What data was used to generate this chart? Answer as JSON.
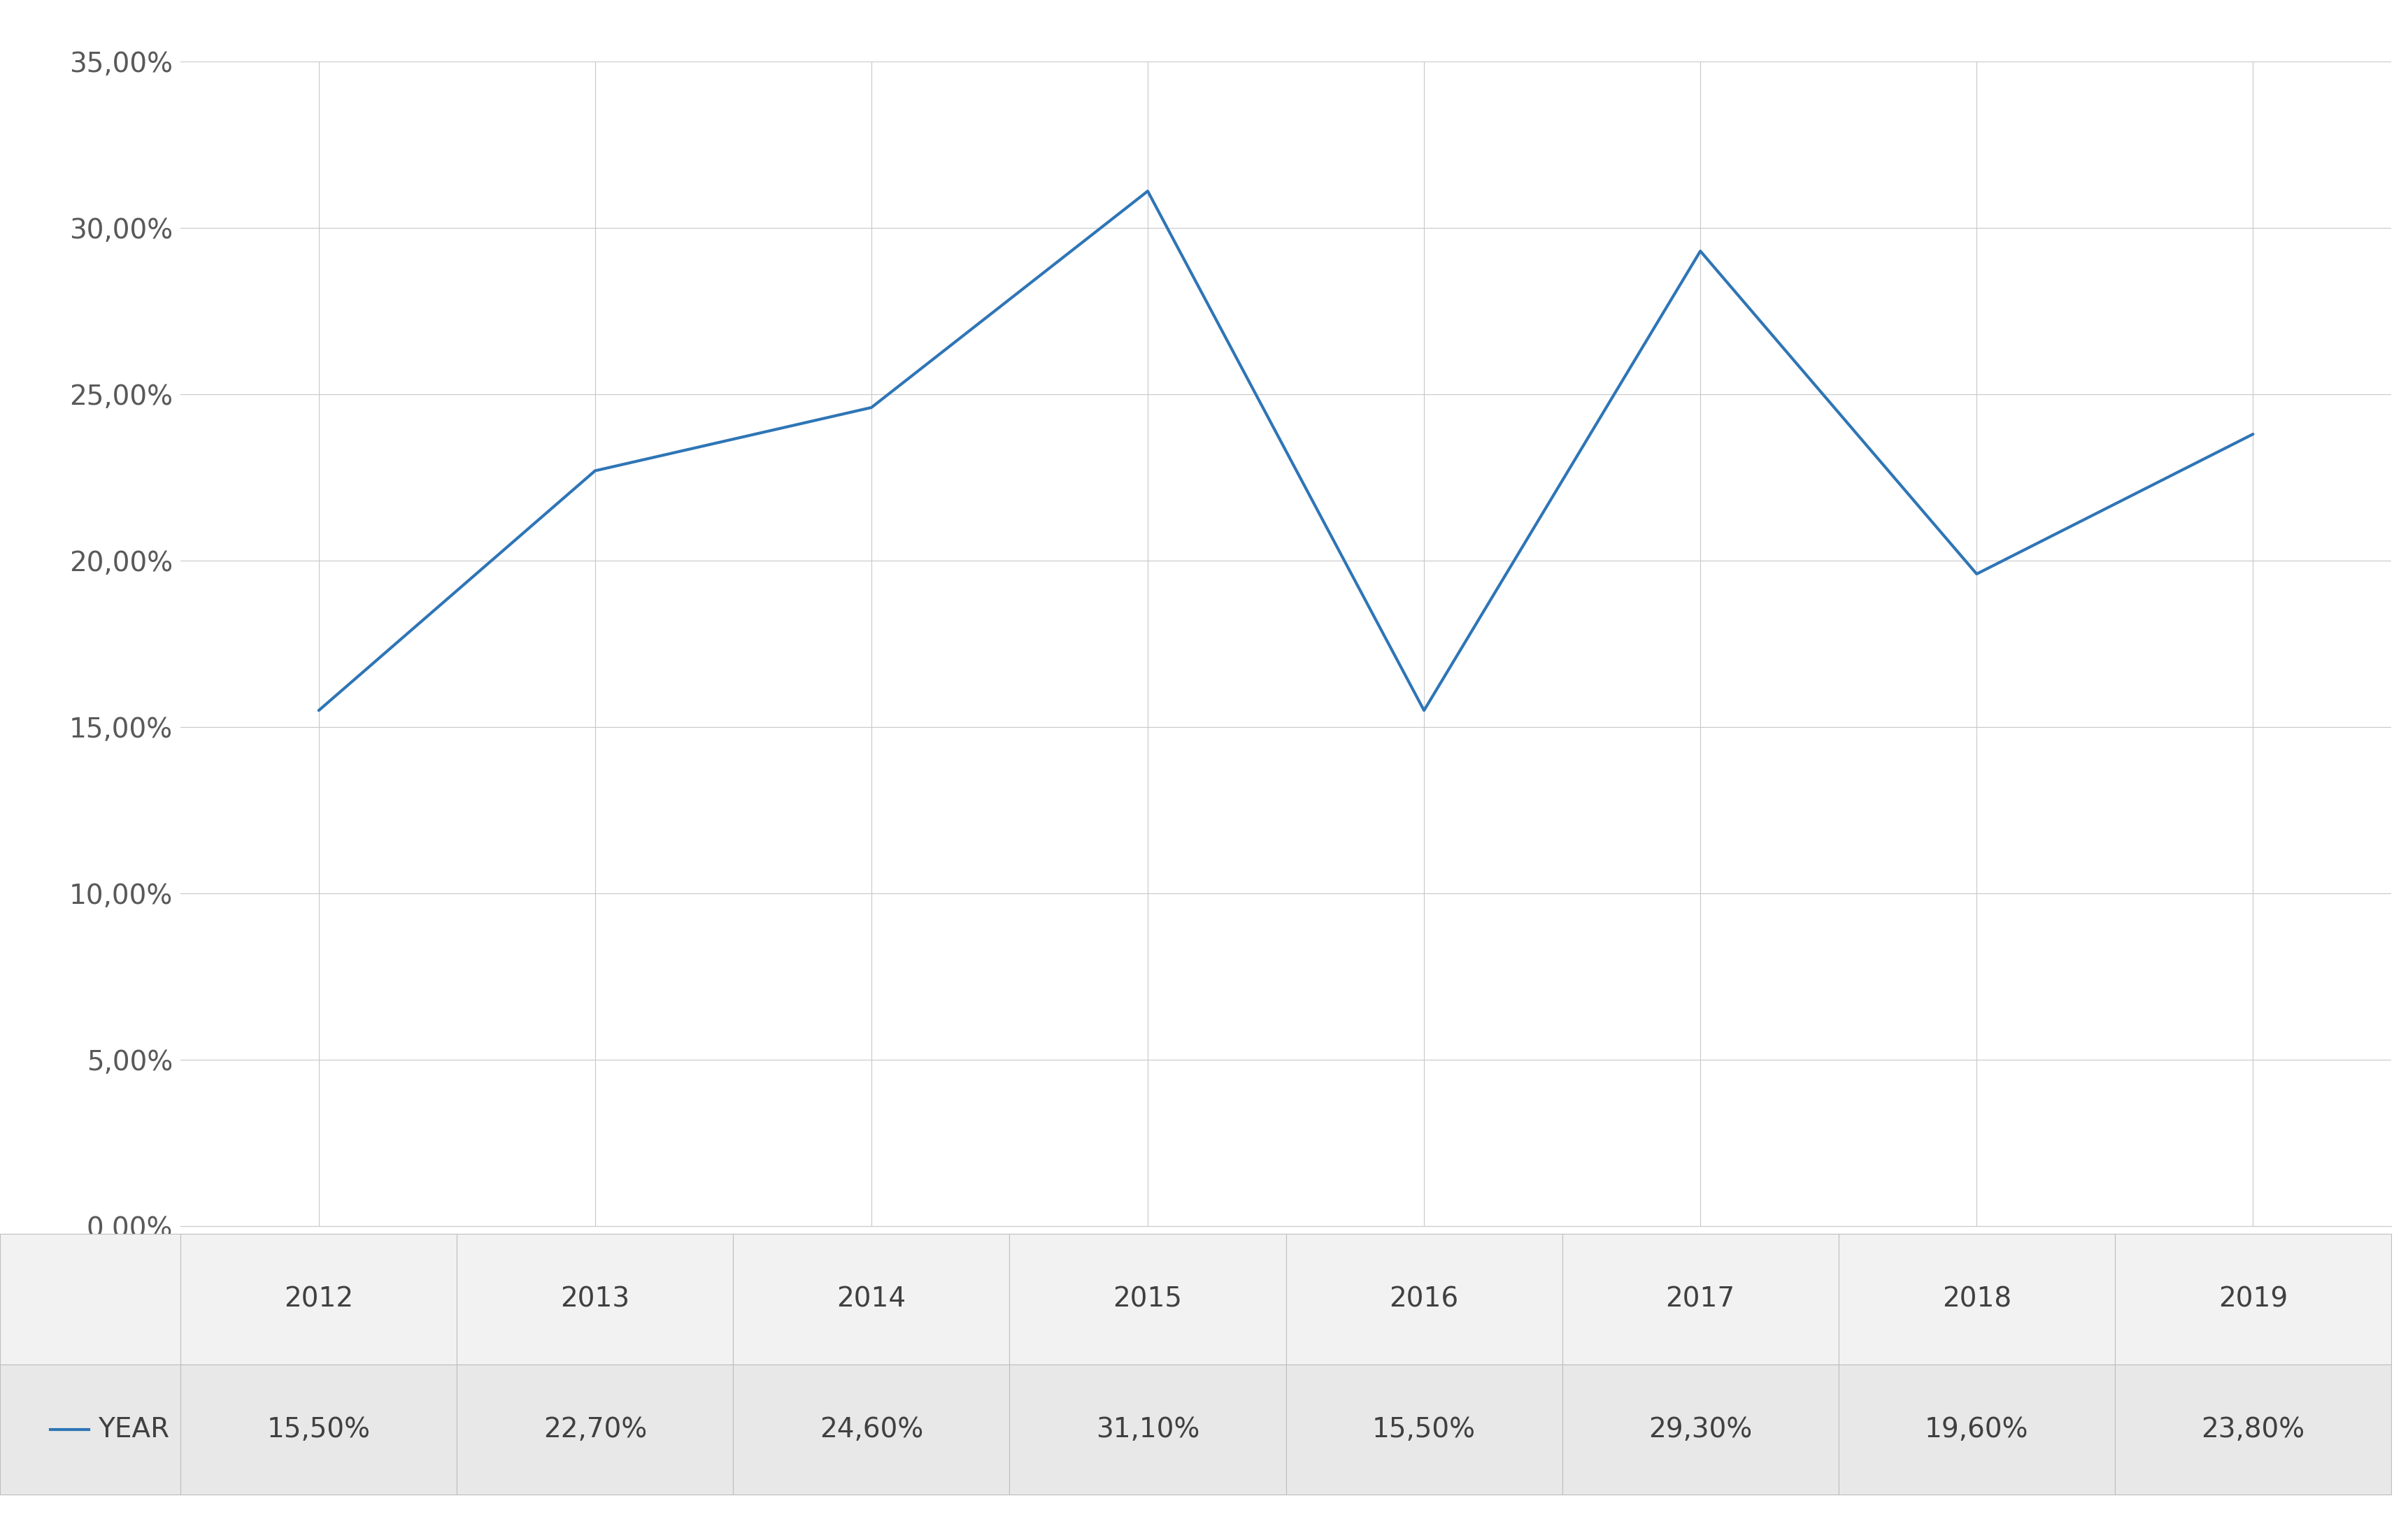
{
  "years": [
    2012,
    2013,
    2014,
    2015,
    2016,
    2017,
    2018,
    2019
  ],
  "values": [
    0.155,
    0.227,
    0.246,
    0.311,
    0.155,
    0.293,
    0.196,
    0.238
  ],
  "labels": [
    "15,50%",
    "22,70%",
    "24,60%",
    "31,10%",
    "15,50%",
    "29,30%",
    "19,60%",
    "23,80%"
  ],
  "line_color": "#2E75B6",
  "line_width": 3.0,
  "ylim": [
    0,
    0.35
  ],
  "yticks": [
    0.0,
    0.05,
    0.1,
    0.15,
    0.2,
    0.25,
    0.3,
    0.35
  ],
  "ytick_labels": [
    "0,00%",
    "5,00%",
    "10,00%",
    "15,00%",
    "20,00%",
    "25,00%",
    "30,00%",
    "35,00%"
  ],
  "grid_color": "#C8C8C8",
  "background_color": "#FFFFFF",
  "legend_label": "YEAR",
  "legend_line_color": "#2E75B6",
  "table_year_bg": "#F2F2F2",
  "table_legend_bg": "#E8E8E8",
  "table_border_color": "#BEBEBE",
  "table_text_color": "#404040",
  "axis_text_color": "#595959",
  "font_size_ticks": 28,
  "font_size_table_year": 28,
  "font_size_table_pct": 28,
  "font_size_legend": 28
}
